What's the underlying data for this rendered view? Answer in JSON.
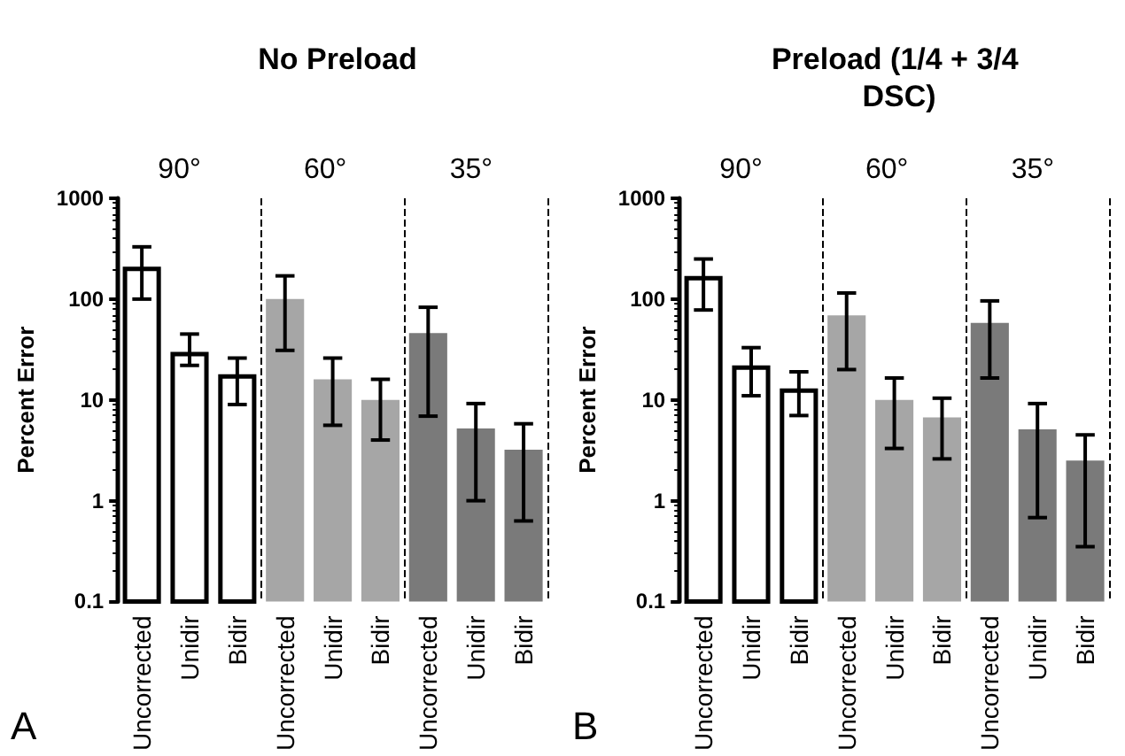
{
  "chart_data": [
    {
      "type": "bar",
      "title": "No Preload",
      "ylabel": "Percent Error",
      "log": true,
      "ylim": [
        0.1,
        1000
      ],
      "yticks": [
        0.1,
        1,
        10,
        100,
        1000
      ],
      "grid": "x",
      "categories": [
        "Uncorrected",
        "Unidir",
        "Bidir",
        "Uncorrected",
        "Unidir",
        "Bidir",
        "Uncorrected",
        "Unidir",
        "Bidir"
      ],
      "values": [
        210,
        30,
        18,
        100,
        16,
        10,
        46,
        5.2,
        3.2
      ],
      "colors": [
        "#ffffff",
        "#ffffff",
        "#ffffff",
        "#a6a6a6",
        "#a6a6a6",
        "#a6a6a6",
        "#7a7a7a",
        "#7a7a7a",
        "#7a7a7a"
      ],
      "errors": [
        [
          100,
          330
        ],
        [
          22,
          45
        ],
        [
          9,
          26
        ],
        [
          31,
          170
        ],
        [
          5.6,
          26
        ],
        [
          4,
          16
        ],
        [
          6.9,
          83
        ],
        [
          1,
          9.2
        ],
        [
          0.63,
          5.8
        ]
      ],
      "annotations": [
        "90°",
        "60°",
        "35°",
        "A"
      ]
    },
    {
      "type": "bar",
      "title": "Preload (1/4 + 3/4 DSC)",
      "ylabel": "Percent Error",
      "log": true,
      "ylim": [
        0.1,
        1000
      ],
      "yticks": [
        0.1,
        1,
        10,
        100,
        1000
      ],
      "grid": "x",
      "categories": [
        "Uncorrected",
        "Unidir",
        "Bidir",
        "Uncorrected",
        "Unidir",
        "Bidir",
        "Uncorrected",
        "Unidir",
        "Bidir"
      ],
      "values": [
        170,
        22,
        13,
        69,
        10,
        6.7,
        58,
        5.1,
        2.5
      ],
      "colors": [
        "#ffffff",
        "#ffffff",
        "#ffffff",
        "#a6a6a6",
        "#a6a6a6",
        "#a6a6a6",
        "#7a7a7a",
        "#7a7a7a",
        "#7a7a7a"
      ],
      "errors": [
        [
          78,
          250
        ],
        [
          11,
          33
        ],
        [
          7,
          19
        ],
        [
          20,
          115
        ],
        [
          3.3,
          16.5
        ],
        [
          2.6,
          10.4
        ],
        [
          16.5,
          96
        ],
        [
          0.68,
          9.2
        ],
        [
          0.35,
          4.5
        ]
      ],
      "annotations": [
        "90°",
        "60°",
        "35°",
        "B"
      ]
    }
  ]
}
